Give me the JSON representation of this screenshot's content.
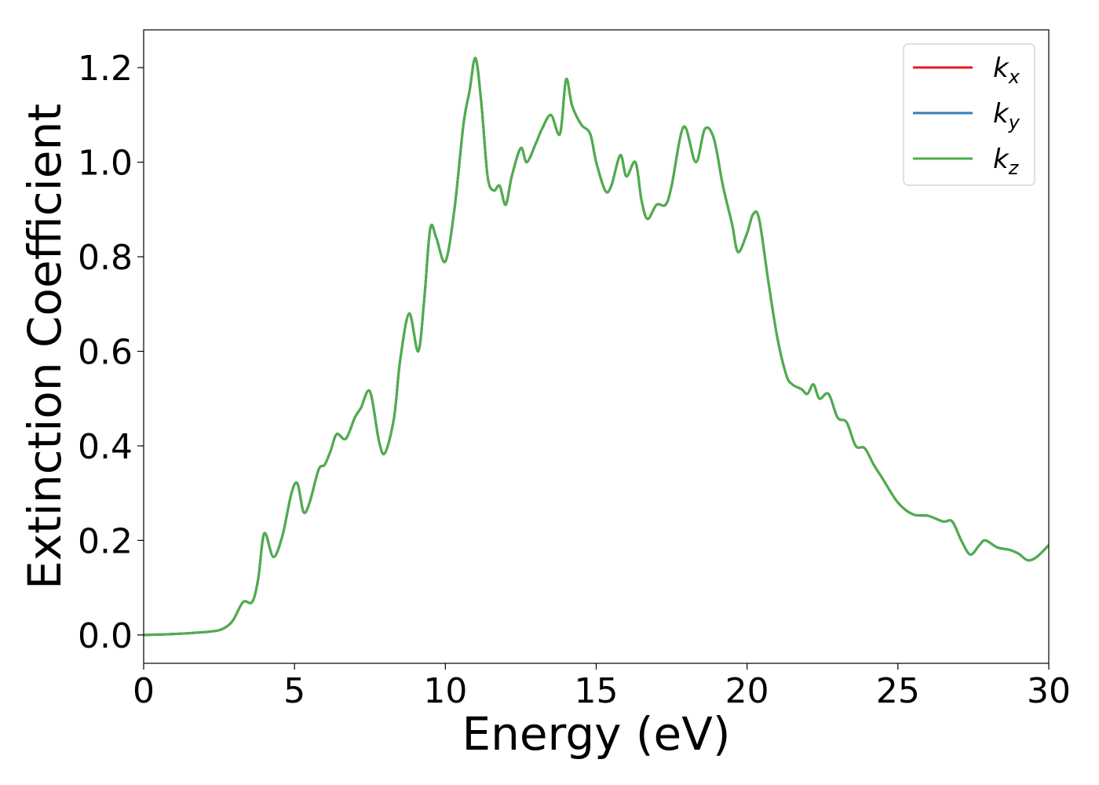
{
  "chart_data": {
    "type": "line",
    "title": "",
    "xlabel": "Energy (eV)",
    "ylabel": "Extinction Coefficient",
    "xlim": [
      0,
      30
    ],
    "ylim": [
      -0.06,
      1.28
    ],
    "xticks": [
      0,
      5,
      10,
      15,
      20,
      25,
      30
    ],
    "xtick_labels": [
      "0",
      "5",
      "10",
      "15",
      "20",
      "25",
      "30"
    ],
    "yticks": [
      0.0,
      0.2,
      0.4,
      0.6,
      0.8,
      1.0,
      1.2
    ],
    "ytick_labels": [
      "0.0",
      "0.2",
      "0.4",
      "0.6",
      "0.8",
      "1.0",
      "1.2"
    ],
    "grid": false,
    "legend_position": "top-right",
    "x": [
      0,
      1,
      2,
      2.5,
      2.8,
      3.0,
      3.3,
      3.6,
      3.8,
      4.0,
      4.3,
      4.6,
      4.9,
      5.1,
      5.3,
      5.5,
      5.8,
      6.0,
      6.2,
      6.4,
      6.7,
      7.0,
      7.2,
      7.5,
      7.8,
      8.0,
      8.3,
      8.5,
      8.8,
      9.1,
      9.3,
      9.5,
      9.7,
      10.0,
      10.3,
      10.6,
      10.8,
      11.0,
      11.2,
      11.4,
      11.6,
      11.8,
      12.0,
      12.2,
      12.5,
      12.7,
      13.0,
      13.2,
      13.5,
      13.8,
      14.0,
      14.2,
      14.5,
      14.8,
      15.0,
      15.3,
      15.5,
      15.8,
      16.0,
      16.3,
      16.5,
      16.7,
      17.0,
      17.3,
      17.5,
      17.9,
      18.3,
      18.6,
      18.9,
      19.2,
      19.5,
      19.7,
      20.0,
      20.2,
      20.4,
      20.7,
      21.0,
      21.3,
      21.5,
      21.8,
      22.0,
      22.2,
      22.4,
      22.7,
      23.0,
      23.3,
      23.6,
      23.9,
      24.2,
      24.5,
      25.0,
      25.5,
      26.0,
      26.5,
      26.8,
      27.1,
      27.4,
      27.7,
      27.9,
      28.3,
      28.7,
      29.0,
      29.3,
      29.6,
      30.0
    ],
    "series": [
      {
        "name": "k",
        "subscript": "x",
        "color": "#e41a1c",
        "values": [
          0.0,
          0.002,
          0.006,
          0.01,
          0.02,
          0.035,
          0.07,
          0.07,
          0.12,
          0.215,
          0.165,
          0.21,
          0.3,
          0.32,
          0.26,
          0.28,
          0.35,
          0.36,
          0.39,
          0.425,
          0.415,
          0.46,
          0.48,
          0.515,
          0.41,
          0.385,
          0.46,
          0.58,
          0.68,
          0.6,
          0.71,
          0.86,
          0.84,
          0.79,
          0.9,
          1.08,
          1.15,
          1.22,
          1.12,
          0.97,
          0.94,
          0.95,
          0.91,
          0.97,
          1.03,
          1.0,
          1.04,
          1.07,
          1.1,
          1.06,
          1.175,
          1.12,
          1.08,
          1.06,
          1.0,
          0.94,
          0.95,
          1.015,
          0.97,
          1.0,
          0.92,
          0.88,
          0.91,
          0.91,
          0.95,
          1.075,
          1.0,
          1.07,
          1.05,
          0.95,
          0.87,
          0.81,
          0.85,
          0.89,
          0.88,
          0.75,
          0.63,
          0.55,
          0.53,
          0.52,
          0.51,
          0.53,
          0.5,
          0.51,
          0.46,
          0.45,
          0.4,
          0.395,
          0.36,
          0.33,
          0.28,
          0.255,
          0.252,
          0.24,
          0.24,
          0.2,
          0.17,
          0.19,
          0.2,
          0.185,
          0.18,
          0.172,
          0.158,
          0.165,
          0.19
        ]
      },
      {
        "name": "k",
        "subscript": "y",
        "color": "#377eb8",
        "values": [
          0.0,
          0.002,
          0.006,
          0.01,
          0.02,
          0.035,
          0.07,
          0.07,
          0.12,
          0.215,
          0.165,
          0.21,
          0.3,
          0.32,
          0.26,
          0.28,
          0.35,
          0.36,
          0.39,
          0.425,
          0.415,
          0.46,
          0.48,
          0.515,
          0.41,
          0.385,
          0.46,
          0.58,
          0.68,
          0.6,
          0.71,
          0.86,
          0.84,
          0.79,
          0.9,
          1.08,
          1.15,
          1.22,
          1.12,
          0.97,
          0.94,
          0.95,
          0.91,
          0.97,
          1.03,
          1.0,
          1.04,
          1.07,
          1.1,
          1.06,
          1.175,
          1.12,
          1.08,
          1.06,
          1.0,
          0.94,
          0.95,
          1.015,
          0.97,
          1.0,
          0.92,
          0.88,
          0.91,
          0.91,
          0.95,
          1.075,
          1.0,
          1.07,
          1.05,
          0.95,
          0.87,
          0.81,
          0.85,
          0.89,
          0.88,
          0.75,
          0.63,
          0.55,
          0.53,
          0.52,
          0.51,
          0.53,
          0.5,
          0.51,
          0.46,
          0.45,
          0.4,
          0.395,
          0.36,
          0.33,
          0.28,
          0.255,
          0.252,
          0.24,
          0.24,
          0.2,
          0.17,
          0.19,
          0.2,
          0.185,
          0.18,
          0.172,
          0.158,
          0.165,
          0.19
        ]
      },
      {
        "name": "k",
        "subscript": "z",
        "color": "#4daf4a",
        "values": [
          0.0,
          0.002,
          0.006,
          0.01,
          0.02,
          0.035,
          0.07,
          0.07,
          0.12,
          0.215,
          0.165,
          0.21,
          0.3,
          0.32,
          0.26,
          0.28,
          0.35,
          0.36,
          0.39,
          0.425,
          0.415,
          0.46,
          0.48,
          0.515,
          0.41,
          0.385,
          0.46,
          0.58,
          0.68,
          0.6,
          0.71,
          0.86,
          0.84,
          0.79,
          0.9,
          1.08,
          1.15,
          1.22,
          1.12,
          0.97,
          0.94,
          0.95,
          0.91,
          0.97,
          1.03,
          1.0,
          1.04,
          1.07,
          1.1,
          1.06,
          1.175,
          1.12,
          1.08,
          1.06,
          1.0,
          0.94,
          0.95,
          1.015,
          0.97,
          1.0,
          0.92,
          0.88,
          0.91,
          0.91,
          0.95,
          1.075,
          1.0,
          1.07,
          1.05,
          0.95,
          0.87,
          0.81,
          0.85,
          0.89,
          0.88,
          0.75,
          0.63,
          0.55,
          0.53,
          0.52,
          0.51,
          0.53,
          0.5,
          0.51,
          0.46,
          0.45,
          0.4,
          0.395,
          0.36,
          0.33,
          0.28,
          0.255,
          0.252,
          0.24,
          0.24,
          0.2,
          0.17,
          0.19,
          0.2,
          0.185,
          0.18,
          0.172,
          0.158,
          0.165,
          0.19
        ]
      }
    ]
  }
}
